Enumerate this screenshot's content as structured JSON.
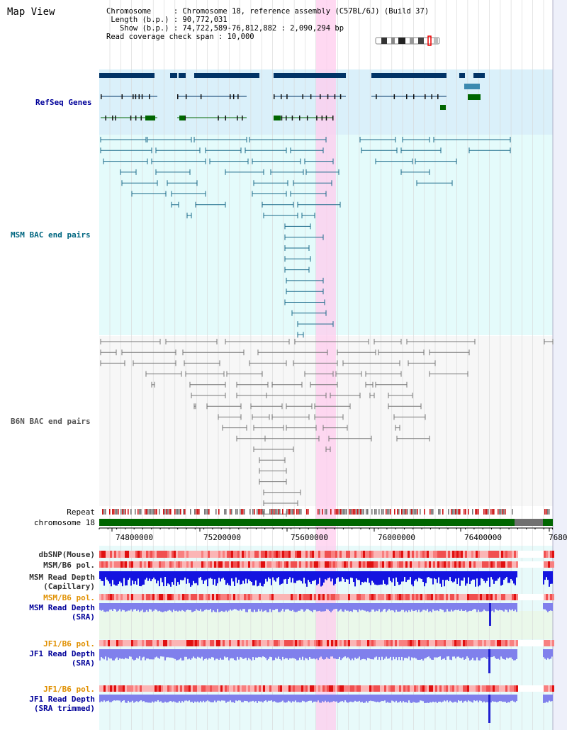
{
  "page_title": "Map View",
  "info_lines": [
    "Chromosome     : Chromosome 18, reference assembly (C57BL/6J) (Build 37)",
    " Length (b.p.) : 90,772,031",
    "   Show (b.p.) : 74,722,589-76,812,882 : 2,090,294 bp",
    "Read coverage check span : 10,000"
  ],
  "tracks": {
    "refseq": "RefSeq Genes",
    "msm_bac": "MSM BAC end pairs",
    "b6n_bac": "B6N BAC end pairs",
    "repeat": "Repeat",
    "chromosome": "chromosome 18",
    "dbsnp": "dbSNP(Mouse)",
    "msm_pol1": "MSM/B6 pol.",
    "msm_depth_cap_1": "MSM Read Depth",
    "msm_depth_cap_2": "(Capillary)",
    "msm_pol2": "MSM/B6 pol.",
    "msm_depth_sra_1": "MSM Read Depth",
    "msm_depth_sra_2": "(SRA)",
    "jf1_pol1": "JF1/B6 pol.",
    "jf1_depth_sra_1": "JF1 Read Depth",
    "jf1_depth_sra_2": "(SRA)",
    "jf1_pol2": "JF1/B6 pol.",
    "jf1_depth_trim_1": "JF1 Read Depth",
    "jf1_depth_trim_2": "(SRA trimmed)"
  },
  "axis_ticks": [
    "74800000",
    "75200000",
    "75600000",
    "76000000",
    "76400000",
    "7680"
  ],
  "colors": {
    "refseq_label": "#000099",
    "msm_label": "#006680",
    "b6n_label": "#555555",
    "pol_label": "#e09000",
    "depth_label": "#000099",
    "highlight": "#ffccee",
    "gene_dark": "#003366",
    "chrom_green": "#006600"
  }
}
